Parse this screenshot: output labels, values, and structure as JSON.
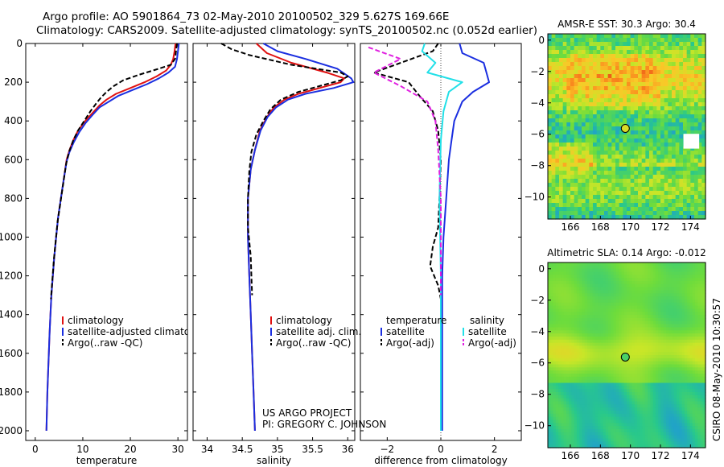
{
  "header": {
    "line1": "Argo profile: AO 5901864_73 02-May-2010 20100502_329 5.627S 169.66E",
    "line2": "Climatology: CARS2009. Satellite-adjusted climatology: synTS_20100502.nc (0.052d earlier)"
  },
  "side_label": "CSIRO 08-May-2010 10:30:57",
  "credit": {
    "line1": "US ARGO PROJECT",
    "line2": "PI: GREGORY C. JOHNSON"
  },
  "colors": {
    "climatology": "#e01010",
    "satellite": "#1a2ee0",
    "argo": "#000000",
    "satellite_salinity": "#22e0e8",
    "argo_salinity_diff": "#e020e0"
  },
  "chart_data": [
    {
      "id": "temperature",
      "type": "line",
      "xlabel": "temperature",
      "ylabel": "",
      "xlim": [
        -2,
        32
      ],
      "ylim": [
        2050,
        0
      ],
      "y_inverted": true,
      "xticks": [
        0,
        10,
        20,
        30
      ],
      "yticks": [
        0,
        200,
        400,
        600,
        800,
        1000,
        1200,
        1400,
        1600,
        1800,
        2000
      ],
      "legend": {
        "position": "lower-left",
        "entries": [
          "climatology",
          "satellite-adjusted climatology",
          "Argo(..raw -QC)"
        ]
      },
      "series": [
        {
          "name": "climatology",
          "color": "#e01010",
          "dash": false,
          "points": [
            [
              29.5,
              0
            ],
            [
              29.3,
              40
            ],
            [
              29,
              80
            ],
            [
              28.5,
              110
            ],
            [
              27.5,
              140
            ],
            [
              25.5,
              170
            ],
            [
              23,
              200
            ],
            [
              20,
              230
            ],
            [
              17,
              260
            ],
            [
              15,
              290
            ],
            [
              13.5,
              320
            ],
            [
              12,
              360
            ],
            [
              10.5,
              400
            ],
            [
              9,
              450
            ],
            [
              8,
              500
            ],
            [
              7.2,
              550
            ],
            [
              6.6,
              600
            ],
            [
              6,
              700
            ],
            [
              5.4,
              800
            ],
            [
              4.8,
              900
            ],
            [
              4.4,
              1000
            ],
            [
              4,
              1100
            ],
            [
              3.7,
              1200
            ],
            [
              3.4,
              1300
            ],
            [
              3.2,
              1400
            ],
            [
              3,
              1500
            ],
            [
              2.85,
              1600
            ],
            [
              2.7,
              1700
            ],
            [
              2.55,
              1800
            ],
            [
              2.45,
              1900
            ],
            [
              2.35,
              2000
            ]
          ]
        },
        {
          "name": "satellite-adjusted climatology",
          "color": "#1a2ee0",
          "dash": false,
          "points": [
            [
              30.2,
              0
            ],
            [
              30,
              40
            ],
            [
              29.8,
              80
            ],
            [
              29.4,
              120
            ],
            [
              28,
              150
            ],
            [
              26,
              180
            ],
            [
              23.5,
              210
            ],
            [
              20.5,
              240
            ],
            [
              17.5,
              270
            ],
            [
              15.5,
              300
            ],
            [
              13.5,
              330
            ],
            [
              12,
              370
            ],
            [
              10.6,
              410
            ],
            [
              9.2,
              460
            ],
            [
              8.1,
              510
            ],
            [
              7.2,
              560
            ],
            [
              6.6,
              610
            ],
            [
              6,
              700
            ],
            [
              5.4,
              800
            ],
            [
              4.8,
              900
            ],
            [
              4.4,
              1000
            ],
            [
              4,
              1100
            ],
            [
              3.7,
              1200
            ],
            [
              3.4,
              1300
            ],
            [
              3.2,
              1400
            ],
            [
              3,
              1500
            ],
            [
              2.85,
              1600
            ],
            [
              2.7,
              1700
            ],
            [
              2.55,
              1800
            ],
            [
              2.45,
              1900
            ],
            [
              2.35,
              2000
            ]
          ]
        },
        {
          "name": "Argo(..raw -QC)",
          "color": "#000000",
          "dash": true,
          "points": [
            [
              29.8,
              0
            ],
            [
              29.6,
              40
            ],
            [
              29.4,
              80
            ],
            [
              28.5,
              110
            ],
            [
              26,
              130
            ],
            [
              22,
              160
            ],
            [
              18.5,
              190
            ],
            [
              16.5,
              220
            ],
            [
              15,
              250
            ],
            [
              13.8,
              280
            ],
            [
              12.8,
              310
            ],
            [
              11.6,
              350
            ],
            [
              10.3,
              400
            ],
            [
              9,
              450
            ],
            [
              8,
              500
            ],
            [
              7.1,
              560
            ],
            [
              6.5,
              620
            ],
            [
              5.9,
              720
            ],
            [
              5.3,
              820
            ],
            [
              4.7,
              920
            ],
            [
              4.3,
              1020
            ],
            [
              3.9,
              1120
            ],
            [
              3.6,
              1220
            ],
            [
              3.3,
              1320
            ]
          ]
        }
      ]
    },
    {
      "id": "salinity",
      "type": "line",
      "xlabel": "salinity",
      "ylabel": "",
      "xlim": [
        33.8,
        36.1
      ],
      "ylim": [
        2050,
        0
      ],
      "y_inverted": true,
      "xticks": [
        34,
        34.5,
        35,
        35.5,
        36
      ],
      "legend": {
        "position": "lower-left",
        "entries": [
          "climatology",
          "satellite adj. clim.",
          "Argo(..raw -QC)"
        ]
      },
      "series": [
        {
          "name": "climatology",
          "color": "#e01010",
          "dash": false,
          "points": [
            [
              34.7,
              0
            ],
            [
              34.85,
              50
            ],
            [
              35.2,
              100
            ],
            [
              35.7,
              150
            ],
            [
              35.95,
              180
            ],
            [
              35.9,
              200
            ],
            [
              35.6,
              230
            ],
            [
              35.3,
              260
            ],
            [
              35.1,
              290
            ],
            [
              34.95,
              330
            ],
            [
              34.85,
              380
            ],
            [
              34.75,
              450
            ],
            [
              34.68,
              550
            ],
            [
              34.62,
              650
            ],
            [
              34.58,
              800
            ],
            [
              34.58,
              1000
            ],
            [
              34.6,
              1200
            ],
            [
              34.62,
              1400
            ],
            [
              34.64,
              1600
            ],
            [
              34.66,
              1800
            ],
            [
              34.68,
              2000
            ]
          ]
        },
        {
          "name": "satellite adj. clim.",
          "color": "#1a2ee0",
          "dash": false,
          "points": [
            [
              34.8,
              0
            ],
            [
              35,
              40
            ],
            [
              35.4,
              80
            ],
            [
              35.85,
              130
            ],
            [
              36.05,
              180
            ],
            [
              36.08,
              200
            ],
            [
              35.8,
              230
            ],
            [
              35.4,
              260
            ],
            [
              35.15,
              290
            ],
            [
              34.98,
              330
            ],
            [
              34.86,
              380
            ],
            [
              34.76,
              450
            ],
            [
              34.68,
              550
            ],
            [
              34.62,
              650
            ],
            [
              34.58,
              800
            ],
            [
              34.58,
              1000
            ],
            [
              34.6,
              1200
            ],
            [
              34.62,
              1400
            ],
            [
              34.64,
              1600
            ],
            [
              34.66,
              1800
            ],
            [
              34.68,
              2000
            ]
          ]
        },
        {
          "name": "Argo(..raw -QC)",
          "color": "#000000",
          "dash": true,
          "points": [
            [
              34.2,
              0
            ],
            [
              34.35,
              30
            ],
            [
              34.6,
              60
            ],
            [
              35.2,
              110
            ],
            [
              35.9,
              150
            ],
            [
              36,
              170
            ],
            [
              35.9,
              190
            ],
            [
              35.6,
              220
            ],
            [
              35.3,
              250
            ],
            [
              35.05,
              290
            ],
            [
              34.9,
              340
            ],
            [
              34.8,
              400
            ],
            [
              34.7,
              470
            ],
            [
              34.63,
              560
            ],
            [
              34.6,
              660
            ],
            [
              34.58,
              800
            ],
            [
              34.58,
              950
            ],
            [
              34.62,
              1100
            ],
            [
              34.63,
              1200
            ],
            [
              34.64,
              1300
            ]
          ]
        }
      ]
    },
    {
      "id": "difference",
      "type": "line",
      "xlabel": "difference from climatology",
      "ylabel": "",
      "xlim": [
        -3,
        3
      ],
      "ylim": [
        2050,
        0
      ],
      "y_inverted": true,
      "xticks": [
        -2,
        0,
        2
      ],
      "legend": {
        "position": "lower-left",
        "headers": [
          "temperature",
          "salinity"
        ],
        "entries": [
          "satellite",
          "Argo(-adj)",
          "satellite",
          "Argo(-adj)"
        ]
      },
      "series": [
        {
          "name": "satellite",
          "group": "temperature",
          "color": "#1a2ee0",
          "dash": false,
          "points": [
            [
              0.7,
              0
            ],
            [
              0.8,
              50
            ],
            [
              1.6,
              100
            ],
            [
              1.7,
              150
            ],
            [
              1.8,
              200
            ],
            [
              1.2,
              250
            ],
            [
              0.8,
              300
            ],
            [
              0.5,
              400
            ],
            [
              0.4,
              500
            ],
            [
              0.3,
              600
            ],
            [
              0.2,
              800
            ],
            [
              0.1,
              1000
            ],
            [
              0.05,
              1200
            ],
            [
              0.05,
              1500
            ],
            [
              0.05,
              1800
            ],
            [
              0.05,
              2000
            ]
          ]
        },
        {
          "name": "Argo(-adj)",
          "group": "temperature",
          "color": "#000000",
          "dash": true,
          "points": [
            [
              -0.1,
              0
            ],
            [
              -0.3,
              40
            ],
            [
              -2.5,
              150
            ],
            [
              -1.2,
              200
            ],
            [
              -0.8,
              270
            ],
            [
              -0.3,
              350
            ],
            [
              -0.1,
              450
            ],
            [
              0,
              600
            ],
            [
              -0.05,
              800
            ],
            [
              -0.1,
              950
            ],
            [
              -0.3,
              1050
            ],
            [
              -0.4,
              1150
            ],
            [
              -0.1,
              1250
            ],
            [
              0,
              1320
            ]
          ]
        },
        {
          "name": "satellite",
          "group": "salinity",
          "color": "#22e0e8",
          "dash": false,
          "points": [
            [
              -0.6,
              0
            ],
            [
              -0.7,
              40
            ],
            [
              -0.2,
              100
            ],
            [
              -0.5,
              150
            ],
            [
              0.8,
              200
            ],
            [
              0.3,
              250
            ],
            [
              0.1,
              350
            ],
            [
              0,
              500
            ],
            [
              -0.05,
              800
            ],
            [
              0,
              1200
            ],
            [
              0,
              1500
            ],
            [
              0,
              2000
            ]
          ]
        },
        {
          "name": "Argo(-adj)",
          "group": "salinity",
          "color": "#e020e0",
          "dash": true,
          "points": [
            [
              -2.7,
              20
            ],
            [
              -1.5,
              80
            ],
            [
              -2.5,
              150
            ],
            [
              -1.5,
              220
            ],
            [
              -0.5,
              300
            ],
            [
              -0.2,
              400
            ],
            [
              -0.1,
              550
            ],
            [
              0,
              800
            ],
            [
              0,
              1000
            ],
            [
              0,
              1200
            ],
            [
              0,
              1300
            ]
          ]
        }
      ]
    },
    {
      "id": "amsre_sst",
      "type": "heatmap",
      "title": "AMSR-E SST: 30.3 Argo: 30.4",
      "xlim": [
        164.5,
        175
      ],
      "ylim": [
        -11.4,
        0.4
      ],
      "xticks": [
        166,
        168,
        170,
        172,
        174
      ],
      "yticks": [
        0,
        -2,
        -4,
        -6,
        -8,
        -10
      ],
      "argo_marker": {
        "lon": 169.66,
        "lat": -5.627,
        "value": 30.4
      },
      "satellite_value": 30.3
    },
    {
      "id": "altimetric_sla",
      "type": "heatmap",
      "title": "Altimetric SLA: 0.14 Argo: -0.012",
      "xlim": [
        164.5,
        175
      ],
      "ylim": [
        -11.4,
        0.4
      ],
      "xticks": [
        166,
        168,
        170,
        172,
        174
      ],
      "yticks": [
        0,
        -2,
        -4,
        -6,
        -8,
        -10
      ],
      "argo_marker": {
        "lon": 169.66,
        "lat": -5.627,
        "value": -0.012
      },
      "satellite_value": 0.14
    }
  ]
}
